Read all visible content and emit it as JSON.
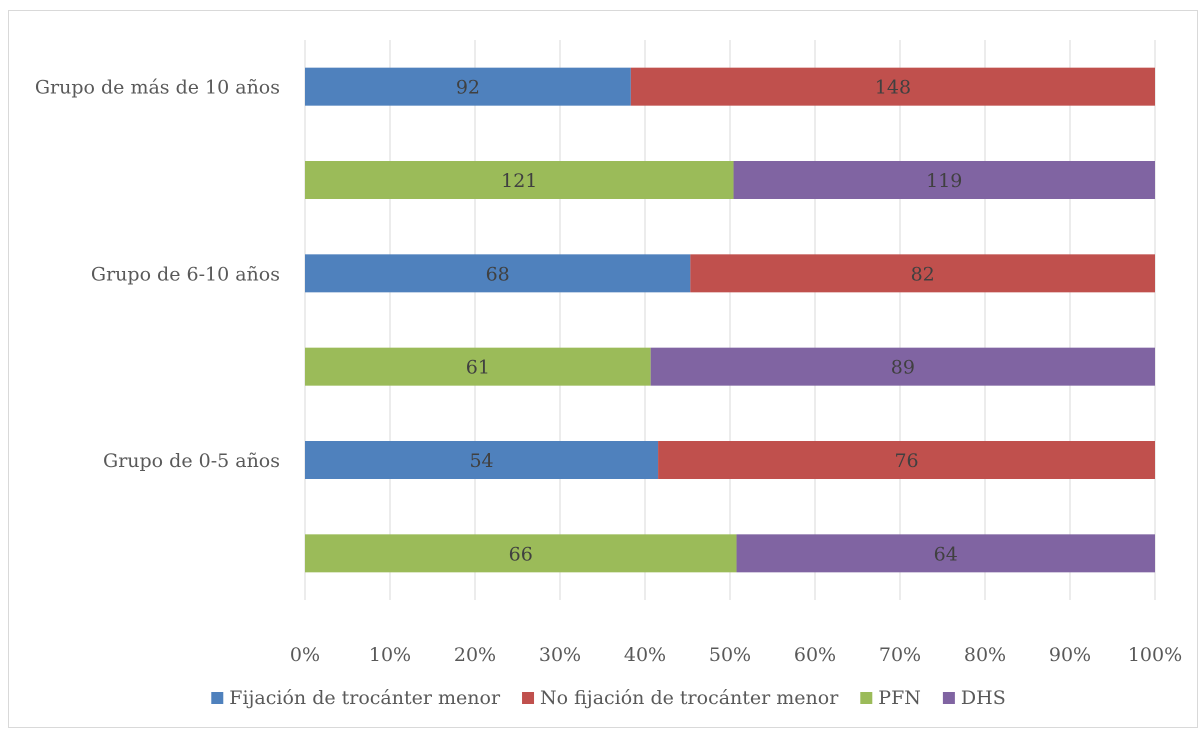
{
  "chart_data": {
    "type": "bar",
    "orientation": "horizontal",
    "stacking": "percent",
    "categories": [
      "Grupo de más de 10 años",
      "Grupo de 6-10 años",
      "Grupo de 0-5 años"
    ],
    "rows": [
      {
        "category": "Grupo de más de 10 años",
        "segments": [
          {
            "series": "Fijación de trocánter menor",
            "value": 92
          },
          {
            "series": "No fijación de trocánter menor",
            "value": 148
          }
        ]
      },
      {
        "category": "",
        "segments": [
          {
            "series": "PFN",
            "value": 121
          },
          {
            "series": "DHS",
            "value": 119
          }
        ]
      },
      {
        "category": "Grupo de 6-10 años",
        "segments": [
          {
            "series": "Fijación de trocánter menor",
            "value": 68
          },
          {
            "series": "No fijación de trocánter menor",
            "value": 82
          }
        ]
      },
      {
        "category": "",
        "segments": [
          {
            "series": "PFN",
            "value": 61
          },
          {
            "series": "DHS",
            "value": 89
          }
        ]
      },
      {
        "category": "Grupo de 0-5 años",
        "segments": [
          {
            "series": "Fijación de trocánter menor",
            "value": 54
          },
          {
            "series": "No fijación de trocánter menor",
            "value": 76
          }
        ]
      },
      {
        "category": "",
        "segments": [
          {
            "series": "PFN",
            "value": 66
          },
          {
            "series": "DHS",
            "value": 64
          }
        ]
      }
    ],
    "series": [
      {
        "name": "Fijación de trocánter menor",
        "color": "#4f81bd"
      },
      {
        "name": "No fijación de trocánter menor",
        "color": "#c0504d"
      },
      {
        "name": "PFN",
        "color": "#9bbb59"
      },
      {
        "name": "DHS",
        "color": "#8064a2"
      }
    ],
    "x_ticks": [
      "0%",
      "10%",
      "20%",
      "30%",
      "40%",
      "50%",
      "60%",
      "70%",
      "80%",
      "90%",
      "100%"
    ],
    "xlim": [
      0,
      100
    ],
    "grid": "vertical",
    "legend_position": "bottom"
  }
}
